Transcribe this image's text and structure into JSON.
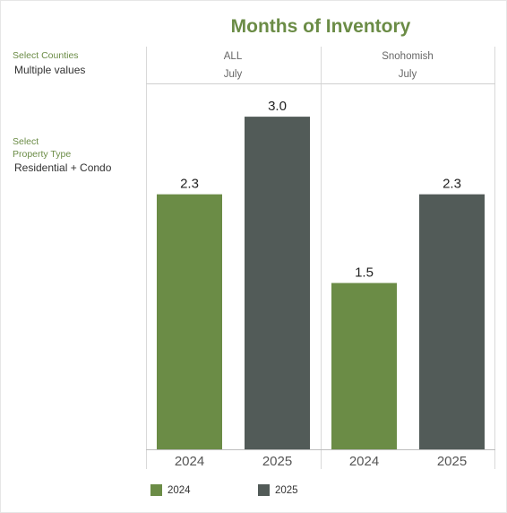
{
  "title": "Months of Inventory",
  "filters": {
    "counties_label": "Select Counties",
    "counties_value": "Multiple values",
    "property_type_label_line1": "Select",
    "property_type_label_line2": "Property Type",
    "property_type_value": "Residential + Condo"
  },
  "colors": {
    "2024": "#6b8c46",
    "2025": "#525b58"
  },
  "chart_data": {
    "type": "bar",
    "title": "Months of Inventory",
    "categories": [
      "2024",
      "2025"
    ],
    "panels": [
      {
        "county": "ALL",
        "month": "July",
        "values": [
          2.3,
          3.0
        ],
        "labels": [
          "2.3",
          "3.0"
        ]
      },
      {
        "county": "Snohomish",
        "month": "July",
        "values": [
          1.5,
          2.3
        ],
        "labels": [
          "1.5",
          "2.3"
        ]
      }
    ],
    "ylim": [
      0,
      3.3
    ],
    "grid": false,
    "legend": {
      "position": "bottom",
      "items": [
        "2024",
        "2025"
      ]
    }
  }
}
